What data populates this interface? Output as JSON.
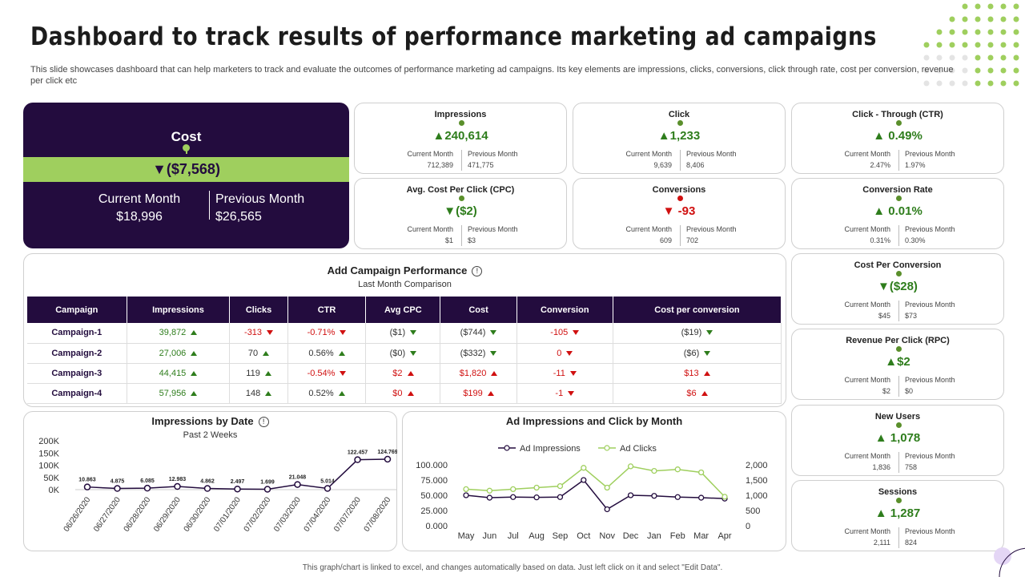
{
  "page": {
    "title": "Dashboard to track results of performance marketing ad campaigns",
    "description": "This slide showcases dashboard that can help marketers to track and evaluate the outcomes of performance marketing ad campaigns. Its key elements are impressions, clicks, conversions, click through rate, cost per conversion, revenue per click etc",
    "footer": "This graph/chart is linked to excel, and changes automatically based on data. Just left click on it and select \"Edit Data\"."
  },
  "cost": {
    "title": "Cost",
    "value": "($7,568)",
    "arrow": "▼",
    "current_label": "Current Month",
    "current_value": "$18,996",
    "previous_label": "Previous Month",
    "previous_value": "$26,565"
  },
  "kpis": {
    "impressions": {
      "title": "Impressions",
      "arrow": "▲",
      "value": "240,614",
      "cur_label": "Current Month",
      "prev_label": "Previous Month",
      "cur": "712,389",
      "prev": "471,775"
    },
    "click": {
      "title": "Click",
      "arrow": "▲",
      "value": "1,233",
      "cur_label": "Current Month",
      "prev_label": "Previous Month",
      "cur": "9,639",
      "prev": "8,406"
    },
    "ctr": {
      "title": "Click - Through (CTR)",
      "arrow": "▲",
      "value": " 0.49%",
      "cur_label": "Current Month",
      "prev_label": "Previous Month",
      "cur": "2.47%",
      "prev": "1.97%"
    },
    "cpc": {
      "title": "Avg. Cost Per Click (CPC)",
      "arrow": "▼",
      "value": "($2)",
      "cur_label": "Current Month",
      "prev_label": "Previous Month",
      "cur": "$1",
      "prev": "$3"
    },
    "conversions": {
      "title": "Conversions",
      "arrow": "▼",
      "value": " -93",
      "cur_label": "Current Month",
      "prev_label": "Previous Month",
      "cur": "609",
      "prev": "702"
    },
    "conversion_rate": {
      "title": "Conversion Rate",
      "arrow": "▲",
      "value": " 0.01%",
      "cur_label": "Current Month",
      "prev_label": "Previous Month",
      "cur": "0.31%",
      "prev": "0.30%"
    },
    "cost_per_conversion": {
      "title": "Cost Per Conversion",
      "arrow": "▼",
      "value": "($28)",
      "cur_label": "Current Month",
      "prev_label": "Previous Month",
      "cur": "$45",
      "prev": "$73"
    },
    "rpc": {
      "title": "Revenue Per Click (RPC)",
      "arrow": "▲",
      "value": "$2",
      "cur_label": "Current Month",
      "prev_label": "Previous Month",
      "cur": "$2",
      "prev": "$0"
    },
    "new_users": {
      "title": "New Users",
      "arrow": "▲",
      "value": " 1,078",
      "cur_label": "Current Month",
      "prev_label": "Previous Month",
      "cur": "1,836",
      "prev": "758"
    },
    "sessions": {
      "title": "Sessions",
      "arrow": "▲",
      "value": " 1,287",
      "cur_label": "Current Month",
      "prev_label": "Previous Month",
      "cur": "2,111",
      "prev": "824"
    }
  },
  "campaign": {
    "title": "Add Campaign Performance",
    "subtitle": "Last Month Comparison",
    "headers": [
      "Campaign",
      "Impressions",
      "Clicks",
      "CTR",
      "Avg CPC",
      "Cost",
      "Conversion",
      "Cost per conversion"
    ],
    "rows": [
      {
        "name": "Campaign-1",
        "cells": [
          [
            "39,872",
            "up"
          ],
          [
            "-313",
            "dn"
          ],
          [
            "-0.71%",
            "dn"
          ],
          [
            "($1)",
            "dnG"
          ],
          [
            "($744)",
            "dnG"
          ],
          [
            "-105",
            "dn"
          ],
          [
            "($19)",
            "dnG"
          ]
        ]
      },
      {
        "name": "Campaign-2",
        "cells": [
          [
            "27,006",
            "up"
          ],
          [
            "70",
            "up"
          ],
          [
            "0.56%",
            "up"
          ],
          [
            "($0)",
            "dnG"
          ],
          [
            "($332)",
            "dnG"
          ],
          [
            "0",
            "dn"
          ],
          [
            "($6)",
            "dnG"
          ]
        ]
      },
      {
        "name": "Campaign-3",
        "cells": [
          [
            "44,415",
            "up"
          ],
          [
            "119",
            "up"
          ],
          [
            "-0.54%",
            "dn"
          ],
          [
            "$2",
            "upR"
          ],
          [
            "$1,820",
            "upR"
          ],
          [
            "-11",
            "dn"
          ],
          [
            "$13",
            "upR"
          ]
        ]
      },
      {
        "name": "Campaign-4",
        "cells": [
          [
            "57,956",
            "up"
          ],
          [
            "148",
            "up"
          ],
          [
            "0.52%",
            "up"
          ],
          [
            "$0",
            "upR"
          ],
          [
            "$199",
            "upR"
          ],
          [
            "-1",
            "dn"
          ],
          [
            "$6",
            "upR"
          ]
        ]
      }
    ]
  },
  "chart_data": [
    {
      "type": "line",
      "title": "Impressions by Date",
      "subtitle": "Past 2 Weeks",
      "x": [
        "06/26/2020",
        "06/27/2020",
        "06/28/2020",
        "06/29/2020",
        "06/30/2020",
        "07/01/2020",
        "07/02/2020",
        "07/03/2020",
        "07/04/2020",
        "07/07/2020",
        "07/08/2020"
      ],
      "values": [
        10863,
        4875,
        6085,
        12983,
        4862,
        2497,
        1699,
        21048,
        5014,
        122457,
        124769
      ],
      "value_labels": [
        "10.863",
        "4.875",
        "6.085",
        "12.983",
        "4.862",
        "2.497",
        "1.699",
        "21.048",
        "5.014",
        "122.457",
        "124.769"
      ],
      "yticks": [
        "200K",
        "150K",
        "100K",
        "50K",
        "0K"
      ],
      "ylim": [
        0,
        200000
      ],
      "color": "#230c3e"
    },
    {
      "type": "line",
      "title": "Ad Impressions and Click by Month",
      "categories": [
        "May",
        "Jun",
        "Jul",
        "Aug",
        "Sep",
        "Oct",
        "Nov",
        "Dec",
        "Jan",
        "Feb",
        "Mar",
        "Apr"
      ],
      "series": [
        {
          "name": "Ad Impressions",
          "axis": "left",
          "color": "#230c3e",
          "values": [
            50000,
            46000,
            47000,
            46500,
            47000,
            75000,
            27000,
            50000,
            49000,
            47000,
            46000,
            44500
          ]
        },
        {
          "name": "Ad Clicks",
          "axis": "right",
          "color": "#9fcf5e",
          "values": [
            1200,
            1150,
            1200,
            1250,
            1300,
            1900,
            1250,
            1950,
            1800,
            1850,
            1750,
            950
          ]
        }
      ],
      "left_ticks": [
        "100.000",
        "75.000",
        "50.000",
        "25.000",
        "0.000"
      ],
      "left_lim": [
        0,
        100000
      ],
      "right_ticks": [
        "2,000",
        "1,500",
        "1,000",
        "500",
        "0"
      ],
      "right_lim": [
        0,
        2000
      ],
      "legend": "top"
    }
  ]
}
